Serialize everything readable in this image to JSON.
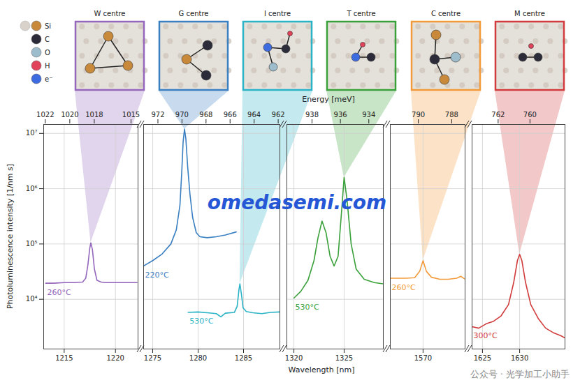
{
  "chart_data": {
    "type": "line",
    "log": "y",
    "grid": true,
    "xlabel": "Wavelength [nm]",
    "x2label": "Energy [meV]",
    "ylabel": "Photoluminescence intensity [1/nm s]",
    "ylim": [
      1260,
      14500000
    ],
    "yticks": [
      {
        "value": 10000,
        "label": "10⁴"
      },
      {
        "value": 100000,
        "label": "10⁵"
      },
      {
        "value": 1000000,
        "label": "10⁶"
      },
      {
        "value": 10000000,
        "label": "10⁷"
      }
    ],
    "panels": [
      {
        "xlim": [
          1213.0,
          1222.2
        ],
        "xticks": [
          1215,
          1220
        ],
        "x2lim": [
          1022.13,
          1014.43
        ],
        "x2ticks": [
          1022,
          1020,
          1018,
          1015
        ]
      },
      {
        "xlim": [
          1274,
          1289
        ],
        "xticks": [
          1275,
          1280,
          1285
        ],
        "x2lim": [
          973.19,
          961.86
        ],
        "x2ticks": [
          972,
          970,
          968,
          966,
          964,
          962
        ]
      },
      {
        "xlim": [
          1319.3,
          1328.9
        ],
        "xticks": [
          1320,
          1325
        ],
        "x2lim": [
          939.77,
          932.98
        ],
        "x2ticks": [
          938,
          936,
          934
        ]
      },
      {
        "xlim": [
          1566.1,
          1575.0
        ],
        "xticks": [
          1570
        ],
        "x2lim": [
          791.68,
          787.2
        ],
        "x2ticks": [
          790,
          788
        ]
      },
      {
        "xlim": [
          1623.6,
          1636.1
        ],
        "xticks": [
          1625,
          1630
        ],
        "x2lim": [
          763.64,
          757.8
        ],
        "x2ticks": [
          762,
          760
        ]
      }
    ],
    "series": [
      {
        "name": "W centre",
        "color": "#9467bd",
        "panel": 0,
        "annotation": "260°C",
        "x": [
          1213.2,
          1214,
          1215,
          1216,
          1216.8,
          1217.1,
          1217.3,
          1217.5,
          1217.6,
          1217.75,
          1217.95,
          1218.2,
          1218.6,
          1219,
          1220,
          1221,
          1222.1
        ],
        "values": [
          19500,
          19500,
          20000,
          20000,
          20500,
          24000,
          40000,
          85000,
          105000,
          80000,
          35000,
          22000,
          20500,
          20000,
          20000,
          20000,
          20000
        ]
      },
      {
        "name": "G centre",
        "color": "#3a7fc1",
        "panel": 1,
        "annotation": "220°C",
        "x": [
          1274,
          1275,
          1276,
          1277,
          1277.6,
          1278,
          1278.2,
          1278.35,
          1278.5,
          1278.65,
          1278.85,
          1279.1,
          1279.4,
          1279.8,
          1280.2,
          1281,
          1282,
          1283,
          1284.2
        ],
        "values": [
          40000,
          50000,
          65000,
          100000,
          180000,
          500000,
          2000000,
          7000000,
          12000000,
          8000000,
          2500000,
          800000,
          300000,
          160000,
          135000,
          130000,
          135000,
          145000,
          165000
        ]
      },
      {
        "name": "I centre",
        "color": "#2ab3c6",
        "panel": 1,
        "annotation": "530°C",
        "x": [
          1278.9,
          1280,
          1281,
          1282,
          1282.5,
          1283,
          1284,
          1284.3,
          1284.5,
          1284.6,
          1284.75,
          1284.95,
          1285.3,
          1286,
          1287,
          1288,
          1289
        ],
        "values": [
          5800,
          5900,
          5700,
          5500,
          4800,
          5600,
          5800,
          7500,
          15000,
          19000,
          13000,
          7000,
          6000,
          5700,
          5500,
          5800,
          5900
        ]
      },
      {
        "name": "T centre",
        "color": "#3aa03a",
        "panel": 2,
        "annotation": "530°C",
        "x": [
          1320,
          1320.7,
          1321.4,
          1322,
          1322.4,
          1322.8,
          1323.2,
          1323.6,
          1324,
          1324.4,
          1324.7,
          1325,
          1325.3,
          1325.7,
          1326.2,
          1327,
          1328,
          1328.9
        ],
        "values": [
          10500,
          14000,
          22000,
          50000,
          130000,
          260000,
          160000,
          60000,
          40000,
          60000,
          300000,
          1600000,
          600000,
          100000,
          35000,
          23000,
          20000,
          19000
        ]
      },
      {
        "name": "C centre",
        "color": "#f39b3a",
        "panel": 3,
        "annotation": "260°C",
        "x": [
          1566.1,
          1567,
          1568,
          1569,
          1569.6,
          1570,
          1570.4,
          1571,
          1572,
          1573,
          1574,
          1574.5,
          1575
        ],
        "values": [
          24000,
          24000,
          24000,
          24500,
          32000,
          50000,
          32000,
          25000,
          23000,
          23000,
          24000,
          26000,
          23000
        ]
      },
      {
        "name": "M centre",
        "color": "#d13b3b",
        "panel": 4,
        "annotation": "300°C",
        "x": [
          1623.6,
          1624.5,
          1625.5,
          1626.5,
          1627.5,
          1628.5,
          1629.2,
          1629.7,
          1630,
          1630.3,
          1630.8,
          1631.5,
          1632.5,
          1633.5,
          1634.5,
          1635.5,
          1636.1
        ],
        "values": [
          3200,
          3000,
          3600,
          4000,
          5000,
          8000,
          20000,
          50000,
          65000,
          50000,
          20000,
          8000,
          4500,
          3000,
          2500,
          2200,
          2000
        ]
      }
    ],
    "atom_legend": [
      {
        "label": "Si",
        "color": "#c8893a"
      },
      {
        "label": "C",
        "color": "#2b2b3a"
      },
      {
        "label": "O",
        "color": "#9dbccc"
      },
      {
        "label": "H",
        "color": "#e0435a"
      },
      {
        "label": "e⁻",
        "color": "#3d6be0"
      }
    ],
    "watermarks": [
      "omedasemi.com",
      "公众号 · 光学加工小助手"
    ]
  }
}
